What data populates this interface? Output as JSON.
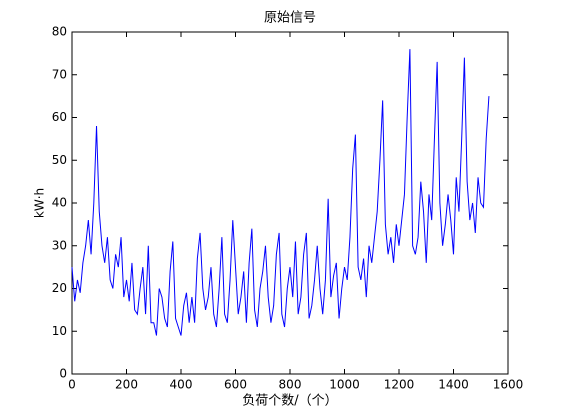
{
  "chart_data": {
    "type": "line",
    "title": "原始信号",
    "xlabel": "负荷个数/（个）",
    "ylabel": "kW·h",
    "x": [
      0,
      10,
      20,
      30,
      40,
      50,
      60,
      70,
      80,
      90,
      100,
      110,
      120,
      130,
      140,
      150,
      160,
      170,
      180,
      190,
      200,
      210,
      220,
      230,
      240,
      250,
      260,
      270,
      280,
      290,
      300,
      310,
      320,
      330,
      340,
      350,
      360,
      370,
      380,
      390,
      400,
      410,
      420,
      430,
      440,
      450,
      460,
      470,
      480,
      490,
      500,
      510,
      520,
      530,
      540,
      550,
      560,
      570,
      580,
      590,
      600,
      610,
      620,
      630,
      640,
      650,
      660,
      670,
      680,
      690,
      700,
      710,
      720,
      730,
      740,
      750,
      760,
      770,
      780,
      790,
      800,
      810,
      820,
      830,
      840,
      850,
      860,
      870,
      880,
      890,
      900,
      910,
      920,
      930,
      940,
      950,
      960,
      970,
      980,
      990,
      1000,
      1010,
      1020,
      1030,
      1040,
      1050,
      1060,
      1070,
      1080,
      1090,
      1100,
      1110,
      1120,
      1130,
      1140,
      1150,
      1160,
      1170,
      1180,
      1190,
      1200,
      1210,
      1220,
      1230,
      1240,
      1250,
      1260,
      1270,
      1280,
      1290,
      1300,
      1310,
      1320,
      1330,
      1340,
      1350,
      1360,
      1370,
      1380,
      1390,
      1400,
      1410,
      1420,
      1430,
      1440,
      1450,
      1460,
      1470,
      1480,
      1490,
      1500,
      1510,
      1520,
      1530
    ],
    "series": [
      {
        "color": "#0000ff",
        "values": [
          25,
          17,
          22,
          19,
          26,
          30,
          36,
          28,
          40,
          58,
          38,
          30,
          26,
          32,
          22,
          20,
          28,
          25,
          32,
          18,
          22,
          17,
          26,
          15,
          14,
          20,
          25,
          14,
          30,
          12,
          12,
          9,
          20,
          18,
          13,
          11,
          24,
          31,
          13,
          11,
          9,
          16,
          19,
          12,
          18,
          12,
          27,
          33,
          20,
          15,
          18,
          25,
          14,
          11,
          20,
          32,
          14,
          12,
          22,
          36,
          25,
          14,
          18,
          24,
          12,
          26,
          34,
          15,
          11,
          20,
          24,
          30,
          18,
          12,
          16,
          28,
          33,
          14,
          11,
          20,
          25,
          18,
          31,
          14,
          18,
          28,
          33,
          13,
          16,
          22,
          30,
          20,
          14,
          22,
          41,
          18,
          23,
          26,
          13,
          20,
          25,
          22,
          32,
          48,
          56,
          25,
          22,
          27,
          18,
          30,
          26,
          32,
          38,
          50,
          64,
          35,
          28,
          32,
          26,
          35,
          30,
          36,
          42,
          60,
          76,
          30,
          28,
          32,
          45,
          38,
          26,
          42,
          36,
          55,
          73,
          40,
          30,
          35,
          42,
          36,
          28,
          46,
          38,
          55,
          74,
          45,
          36,
          40,
          33,
          46,
          40,
          39,
          55,
          65
        ]
      }
    ],
    "xlim": [
      0,
      1600
    ],
    "xticks": [
      0,
      200,
      400,
      600,
      800,
      1000,
      1200,
      1400,
      1600
    ],
    "ylim": [
      0,
      80
    ],
    "yticks": [
      0,
      10,
      20,
      30,
      40,
      50,
      60,
      70,
      80
    ]
  }
}
